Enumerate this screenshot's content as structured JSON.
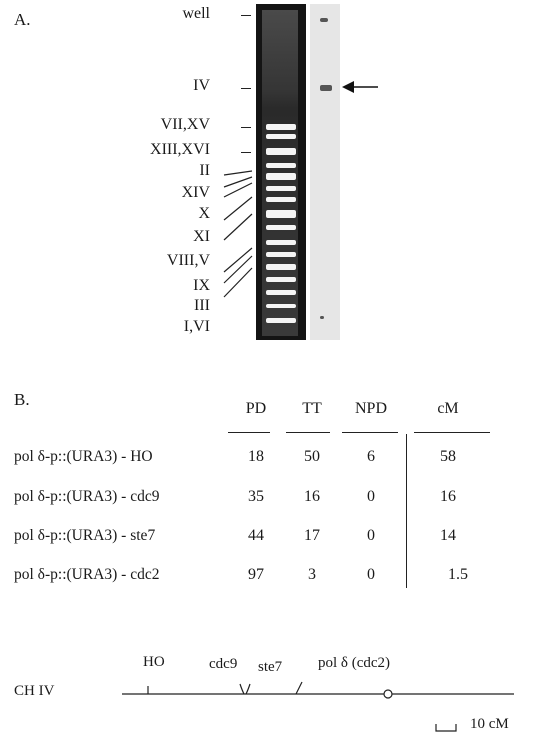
{
  "panel_a": {
    "label": "A.",
    "chromosome_labels": [
      "well",
      "IV",
      "VII,XV",
      "XIII,XVI",
      "II",
      "XIV",
      "X",
      "XI",
      "VIII,V",
      "IX",
      "III",
      "I,VI"
    ]
  },
  "panel_b": {
    "label": "B.",
    "headers": [
      "PD",
      "TT",
      "NPD",
      "cM"
    ],
    "rows": [
      {
        "label": "pol δ-p::(URA3) - HO",
        "pd": "18",
        "tt": "50",
        "npd": "6",
        "cm": "58"
      },
      {
        "label": "pol δ-p::(URA3) - cdc9",
        "pd": "35",
        "tt": "16",
        "npd": "0",
        "cm": "16"
      },
      {
        "label": "pol δ-p::(URA3) - ste7",
        "pd": "44",
        "tt": "17",
        "npd": "0",
        "cm": "14"
      },
      {
        "label": "pol δ-p::(URA3) - cdc2",
        "pd": "97",
        "tt": "3",
        "npd": "0",
        "cm": "1.5"
      }
    ]
  },
  "map": {
    "chromosome": "CH IV",
    "loci": [
      "HO",
      "cdc9",
      "ste7",
      "pol δ (cdc2)"
    ],
    "scale_label": "10 cM"
  }
}
